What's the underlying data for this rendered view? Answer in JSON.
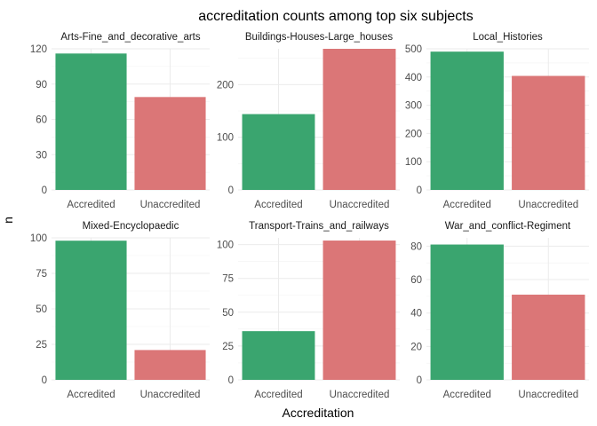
{
  "chart_data": {
    "type": "bar",
    "title": "accreditation counts among top six subjects",
    "xlabel": "Accreditation",
    "ylabel": "n",
    "categories": [
      "Accredited",
      "Unaccredited"
    ],
    "colors": [
      "#3aa56f",
      "#db7677"
    ],
    "grid": true,
    "legend": "none",
    "facets": [
      {
        "name": "Arts-Fine_and_decorative_arts",
        "values": [
          116,
          79
        ],
        "ylim": [
          0,
          120
        ],
        "yticks": [
          0,
          30,
          60,
          90,
          120
        ]
      },
      {
        "name": "Buildings-Houses-Large_houses",
        "values": [
          144,
          268
        ],
        "ylim": [
          0,
          268
        ],
        "yticks": [
          0,
          100,
          200
        ]
      },
      {
        "name": "Local_Histories",
        "values": [
          490,
          404
        ],
        "ylim": [
          0,
          500
        ],
        "yticks": [
          0,
          100,
          200,
          300,
          400,
          500
        ]
      },
      {
        "name": "Mixed-Encyclopaedic",
        "values": [
          98,
          21
        ],
        "ylim": [
          0,
          100
        ],
        "yticks": [
          0,
          25,
          50,
          75,
          100
        ]
      },
      {
        "name": "Transport-Trains_and_railways",
        "values": [
          36,
          103
        ],
        "ylim": [
          0,
          105
        ],
        "yticks": [
          0,
          25,
          50,
          75,
          100
        ]
      },
      {
        "name": "War_and_conflict-Regiment",
        "values": [
          81,
          51
        ],
        "ylim": [
          0,
          85
        ],
        "yticks": [
          0,
          20,
          40,
          60,
          80
        ]
      }
    ]
  }
}
